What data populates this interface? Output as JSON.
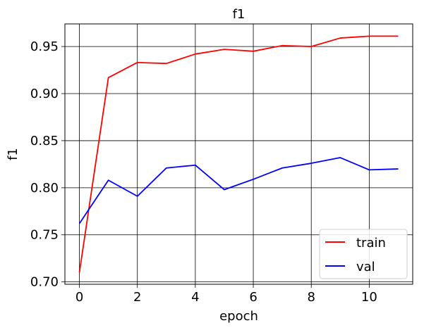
{
  "chart_data": {
    "type": "line",
    "title": "f1",
    "xlabel": "epoch",
    "ylabel": "f1",
    "xlim": [
      -0.5,
      11.5
    ],
    "ylim": [
      0.6975,
      0.974
    ],
    "xticks": [
      0,
      2,
      4,
      6,
      8,
      10
    ],
    "xtick_labels": [
      "0",
      "2",
      "4",
      "6",
      "8",
      "10"
    ],
    "yticks": [
      0.7,
      0.75,
      0.8,
      0.85,
      0.9,
      0.95
    ],
    "ytick_labels": [
      "0.70",
      "0.75",
      "0.80",
      "0.85",
      "0.90",
      "0.95"
    ],
    "grid": true,
    "legend_position": "bottom-right",
    "x": [
      0,
      1,
      2,
      3,
      4,
      5,
      6,
      7,
      8,
      9,
      10,
      11
    ],
    "series": [
      {
        "name": "train",
        "color": "#ff0000",
        "values": [
          0.71,
          0.917,
          0.933,
          0.932,
          0.942,
          0.947,
          0.945,
          0.951,
          0.95,
          0.959,
          0.961,
          0.961
        ]
      },
      {
        "name": "val",
        "color": "#0000ff",
        "values": [
          0.762,
          0.808,
          0.791,
          0.821,
          0.824,
          0.798,
          0.809,
          0.821,
          0.826,
          0.832,
          0.819,
          0.82
        ]
      }
    ]
  }
}
